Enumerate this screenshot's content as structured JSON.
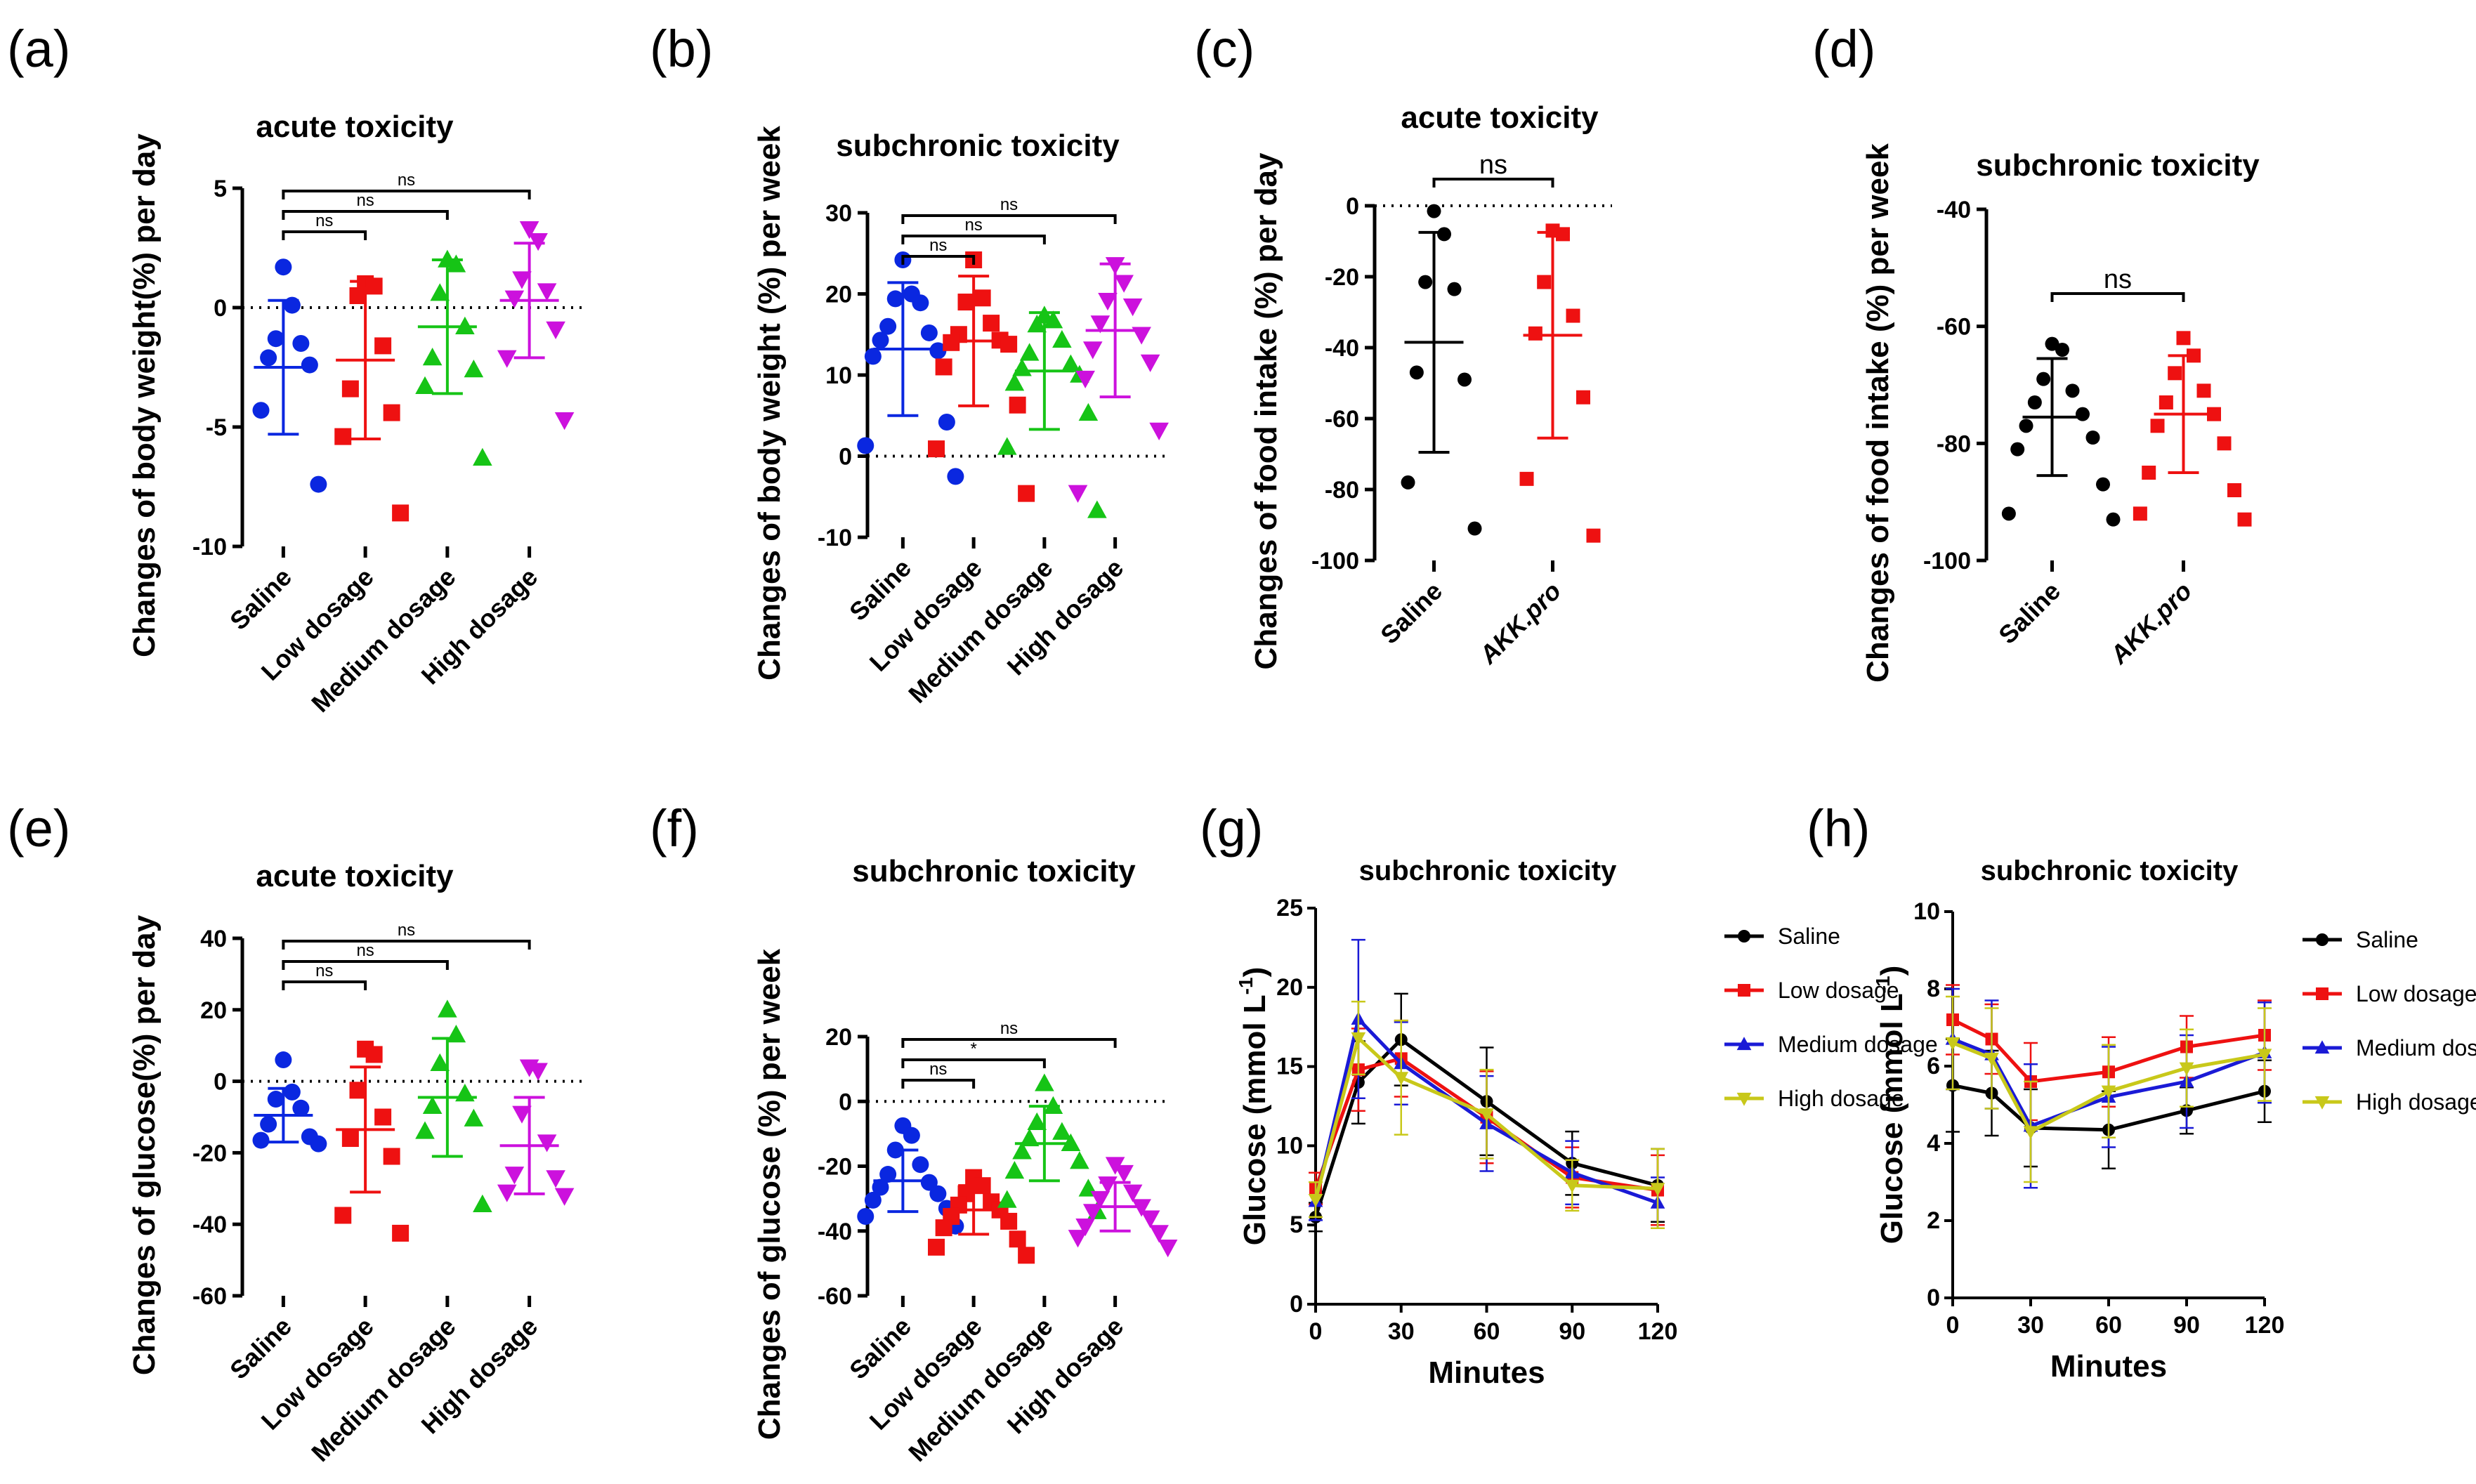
{
  "colors": {
    "saline": "#0a27e0",
    "low": "#ee1111",
    "medium": "#16c416",
    "high": "#cc11dd",
    "black": "#000000",
    "line_low": "#ee1111",
    "line_medium": "#1a1ad6",
    "line_high": "#c8c81a"
  },
  "chart_data": [
    {
      "id": "a",
      "panel_label": "(a)",
      "type": "scatter",
      "title": "acute toxicity",
      "ylabel": "Changes of body weight(%) per day",
      "ylim": [
        -10,
        5
      ],
      "yticks": [
        5,
        0,
        -5,
        -10
      ],
      "categories": [
        "Saline",
        "Low dosage",
        "Medium dosage",
        "High dosage"
      ],
      "series": [
        {
          "name": "Saline",
          "marker": "circle",
          "color_key": "saline",
          "mean": -2.5,
          "sd": 2.8,
          "values": [
            1.7,
            0.1,
            -1.3,
            -1.5,
            -2.1,
            -2.4,
            -4.3,
            -7.4
          ]
        },
        {
          "name": "Low dosage",
          "marker": "square",
          "color_key": "low",
          "mean": -2.2,
          "sd": 3.3,
          "values": [
            1.0,
            0.9,
            0.5,
            -1.6,
            -3.4,
            -4.4,
            -5.4,
            -8.6
          ]
        },
        {
          "name": "Medium dosage",
          "marker": "triangle-up",
          "color_key": "medium",
          "mean": -0.8,
          "sd": 2.8,
          "values": [
            2.0,
            1.8,
            0.6,
            -0.8,
            -2.1,
            -2.6,
            -3.3,
            -6.3
          ]
        },
        {
          "name": "High dosage",
          "marker": "triangle-down",
          "color_key": "high",
          "mean": 0.3,
          "sd": 2.4,
          "values": [
            3.3,
            2.8,
            1.2,
            0.7,
            0.4,
            -0.9,
            -2.1,
            -4.7
          ]
        }
      ],
      "significance": [
        {
          "from": 0,
          "to": 1,
          "label": "ns"
        },
        {
          "from": 0,
          "to": 2,
          "label": "ns"
        },
        {
          "from": 0,
          "to": 3,
          "label": "ns"
        }
      ]
    },
    {
      "id": "b",
      "panel_label": "(b)",
      "type": "scatter",
      "title": "subchronic toxicity",
      "ylabel": "Changes of body weight (%) per week",
      "ylim": [
        -10,
        30
      ],
      "yticks": [
        30,
        20,
        10,
        0,
        -10
      ],
      "categories": [
        "Saline",
        "Low dosage",
        "Medium dosage",
        "High dosage"
      ],
      "series": [
        {
          "name": "Saline",
          "marker": "circle",
          "color_key": "saline",
          "mean": 13.2,
          "sd": 8.2,
          "values": [
            24.2,
            20.0,
            19.4,
            18.9,
            16.0,
            15.2,
            14.3,
            13.0,
            12.3,
            4.2,
            1.3,
            -2.5
          ]
        },
        {
          "name": "Low dosage",
          "marker": "square",
          "color_key": "low",
          "mean": 14.2,
          "sd": 8.0,
          "values": [
            24.2,
            19.5,
            19.0,
            16.4,
            15.0,
            14.3,
            14.0,
            13.8,
            11.0,
            6.3,
            0.9,
            -4.6
          ]
        },
        {
          "name": "Medium dosage",
          "marker": "triangle-up",
          "color_key": "medium",
          "mean": 10.5,
          "sd": 7.2,
          "values": [
            17.3,
            16.7,
            16.2,
            14.3,
            12.7,
            11.3,
            10.8,
            10.0,
            9.0,
            5.3,
            1.1,
            -6.7
          ]
        },
        {
          "name": "High dosage",
          "marker": "triangle-down",
          "color_key": "high",
          "mean": 15.5,
          "sd": 8.2,
          "values": [
            23.6,
            21.4,
            19.2,
            18.5,
            16.4,
            15.0,
            13.2,
            11.6,
            9.6,
            3.2,
            -4.5
          ]
        }
      ],
      "significance": [
        {
          "from": 0,
          "to": 1,
          "label": "ns"
        },
        {
          "from": 0,
          "to": 2,
          "label": "ns"
        },
        {
          "from": 0,
          "to": 3,
          "label": "ns"
        }
      ]
    },
    {
      "id": "c",
      "panel_label": "(c)",
      "type": "scatter",
      "title": "acute toxicity",
      "ylabel": "Changes of food intake (%) per day",
      "ylim": [
        -100,
        0
      ],
      "yticks": [
        0,
        -20,
        -40,
        -60,
        -80,
        -100
      ],
      "categories": [
        "Saline",
        "AKK.pro"
      ],
      "series": [
        {
          "name": "Saline",
          "marker": "circle",
          "color_key": "black",
          "mean": -38.5,
          "sd": 31.0,
          "values": [
            -1.5,
            -8.0,
            -21.5,
            -23.5,
            -47.0,
            -49.0,
            -78.0,
            -91.0
          ]
        },
        {
          "name": "AKK.pro",
          "marker": "square",
          "color_key": "low",
          "mean": -36.5,
          "sd": 29.0,
          "values": [
            -7.0,
            -8.0,
            -21.5,
            -31.0,
            -36.0,
            -54.0,
            -77.0,
            -93.0
          ]
        }
      ],
      "significance": [
        {
          "from": 0,
          "to": 1,
          "label": "ns"
        }
      ]
    },
    {
      "id": "d",
      "panel_label": "(d)",
      "type": "scatter",
      "title": "subchronic toxicity",
      "ylabel": "Changes of food intake (%) per week",
      "ylim": [
        -100,
        -40
      ],
      "yticks": [
        -40,
        -60,
        -80,
        -100
      ],
      "categories": [
        "Saline",
        "AKK.pro"
      ],
      "series": [
        {
          "name": "Saline",
          "marker": "circle",
          "color_key": "black",
          "mean": -75.5,
          "sd": 10.0,
          "values": [
            -63.0,
            -64.0,
            -69.0,
            -71.0,
            -73.0,
            -75.0,
            -77.0,
            -79.0,
            -81.0,
            -87.0,
            -92.0,
            -93.0
          ]
        },
        {
          "name": "AKK.pro",
          "marker": "square",
          "color_key": "low",
          "mean": -75.0,
          "sd": 10.0,
          "values": [
            -62.0,
            -65.0,
            -68.0,
            -71.0,
            -73.0,
            -75.0,
            -77.0,
            -80.0,
            -85.0,
            -88.0,
            -92.0,
            -93.0
          ]
        }
      ],
      "significance": [
        {
          "from": 0,
          "to": 1,
          "label": "ns"
        }
      ]
    },
    {
      "id": "e",
      "panel_label": "(e)",
      "type": "scatter",
      "title": "acute toxicity",
      "ylabel": "Changes of glucose(%) per day",
      "ylim": [
        -60,
        40
      ],
      "yticks": [
        40,
        20,
        0,
        -20,
        -40,
        -60
      ],
      "categories": [
        "Saline",
        "Low dosage",
        "Medium dosage",
        "High dosage"
      ],
      "series": [
        {
          "name": "Saline",
          "marker": "circle",
          "color_key": "saline",
          "mean": -9.5,
          "sd": 7.5,
          "values": [
            6.0,
            -3.0,
            -5.0,
            -7.5,
            -12.0,
            -15.5,
            -16.5,
            -17.5
          ]
        },
        {
          "name": "Low dosage",
          "marker": "square",
          "color_key": "low",
          "mean": -13.5,
          "sd": 17.5,
          "values": [
            9.0,
            7.5,
            -2.5,
            -10.0,
            -16.0,
            -21.0,
            -37.5,
            -42.5
          ]
        },
        {
          "name": "Medium dosage",
          "marker": "triangle-up",
          "color_key": "medium",
          "mean": -4.5,
          "sd": 16.5,
          "values": [
            20.0,
            13.0,
            5.0,
            -3.5,
            -7.0,
            -10.5,
            -14.0,
            -34.5
          ]
        },
        {
          "name": "High dosage",
          "marker": "triangle-down",
          "color_key": "high",
          "mean": -18.0,
          "sd": 13.5,
          "values": [
            4.0,
            3.0,
            -9.0,
            -17.0,
            -26.0,
            -27.0,
            -31.0,
            -32.0
          ]
        }
      ],
      "significance": [
        {
          "from": 0,
          "to": 1,
          "label": "ns"
        },
        {
          "from": 0,
          "to": 2,
          "label": "ns"
        },
        {
          "from": 0,
          "to": 3,
          "label": "ns"
        }
      ]
    },
    {
      "id": "f",
      "panel_label": "(f)",
      "type": "scatter",
      "title": "subchronic toxicity",
      "ylabel": "Changes of glucose (%) per week",
      "ylim": [
        -60,
        20
      ],
      "yticks": [
        20,
        0,
        -20,
        -40,
        -60
      ],
      "categories": [
        "Saline",
        "Low dosage",
        "Medium dosage",
        "High dosage"
      ],
      "series": [
        {
          "name": "Saline",
          "marker": "circle",
          "color_key": "saline",
          "mean": -24.5,
          "sd": 9.5,
          "values": [
            -7.5,
            -10.5,
            -15.0,
            -19.5,
            -22.5,
            -25.0,
            -26.5,
            -28.5,
            -30.5,
            -33.0,
            -35.5,
            -38.5
          ]
        },
        {
          "name": "Low dosage",
          "marker": "square",
          "color_key": "low",
          "mean": -33.5,
          "sd": 7.5,
          "values": [
            -23.5,
            -26.0,
            -28.5,
            -31.0,
            -32.0,
            -33.5,
            -35.5,
            -37.0,
            -39.0,
            -42.5,
            -45.0,
            -47.5
          ]
        },
        {
          "name": "Medium dosage",
          "marker": "triangle-up",
          "color_key": "medium",
          "mean": -13.0,
          "sd": 11.5,
          "values": [
            5.5,
            -1.5,
            -6.5,
            -9.5,
            -11.5,
            -13.0,
            -15.5,
            -18.5,
            -21.5,
            -27.0,
            -30.5,
            -34.0
          ]
        },
        {
          "name": "High dosage",
          "marker": "triangle-down",
          "color_key": "high",
          "mean": -32.5,
          "sd": 7.5,
          "values": [
            -19.5,
            -22.0,
            -25.5,
            -28.0,
            -30.0,
            -32.5,
            -34.0,
            -36.0,
            -38.5,
            -40.5,
            -42.0,
            -45.0
          ]
        }
      ],
      "significance": [
        {
          "from": 0,
          "to": 1,
          "label": "ns"
        },
        {
          "from": 0,
          "to": 2,
          "label": "*"
        },
        {
          "from": 0,
          "to": 3,
          "label": "ns"
        }
      ]
    },
    {
      "id": "g",
      "panel_label": "(g)",
      "type": "line",
      "title": "subchronic toxicity",
      "xlabel": "Minutes",
      "ylabel_main": "Glucose (mmol L",
      "ylabel_sup": "-1",
      "ylabel_close": ")",
      "xlim": [
        0,
        120
      ],
      "xticks": [
        0,
        30,
        60,
        90,
        120
      ],
      "ylim": [
        0,
        25
      ],
      "yticks": [
        0,
        5,
        10,
        15,
        20,
        25
      ],
      "x": [
        0,
        15,
        30,
        60,
        90,
        120
      ],
      "series": [
        {
          "name": "Saline",
          "marker": "circle",
          "color_key": "black",
          "values": [
            5.5,
            14.0,
            16.7,
            12.8,
            8.9,
            7.5
          ],
          "err": [
            0.9,
            2.6,
            2.9,
            3.4,
            2.0,
            2.3
          ]
        },
        {
          "name": "Low dosage",
          "marker": "square",
          "color_key": "line_low",
          "values": [
            7.3,
            14.8,
            15.5,
            11.8,
            8.0,
            7.2
          ],
          "err": [
            1.0,
            2.6,
            2.4,
            2.9,
            1.9,
            2.2
          ]
        },
        {
          "name": "Medium dosage",
          "marker": "triangle-up",
          "color_key": "line_medium",
          "values": [
            6.5,
            18.0,
            15.2,
            11.4,
            8.3,
            6.4
          ],
          "err": [
            1.2,
            5.0,
            2.6,
            3.0,
            2.0,
            1.6
          ]
        },
        {
          "name": "High dosage",
          "marker": "triangle-down",
          "color_key": "line_high",
          "values": [
            6.6,
            16.8,
            14.3,
            12.0,
            7.5,
            7.3
          ],
          "err": [
            1.1,
            2.3,
            3.6,
            2.8,
            1.6,
            2.5
          ]
        }
      ]
    },
    {
      "id": "h",
      "panel_label": "(h)",
      "type": "line",
      "title": "subchronic toxicity",
      "xlabel": "Minutes",
      "ylabel_main": "Glucose (mmol L",
      "ylabel_sup": "-1",
      "ylabel_close": ")",
      "xlim": [
        0,
        120
      ],
      "xticks": [
        0,
        30,
        60,
        90,
        120
      ],
      "ylim": [
        0,
        10
      ],
      "yticks": [
        0,
        2,
        4,
        6,
        8,
        10
      ],
      "x": [
        0,
        15,
        30,
        60,
        90,
        120
      ],
      "series": [
        {
          "name": "Saline",
          "marker": "circle",
          "color_key": "black",
          "values": [
            5.5,
            5.3,
            4.4,
            4.35,
            4.85,
            5.35
          ],
          "err": [
            1.2,
            1.1,
            1.0,
            1.0,
            0.6,
            0.8
          ]
        },
        {
          "name": "Low dosage",
          "marker": "square",
          "color_key": "line_low",
          "values": [
            7.2,
            6.7,
            5.6,
            5.85,
            6.5,
            6.8
          ],
          "err": [
            0.9,
            0.9,
            1.0,
            0.9,
            0.8,
            0.9
          ]
        },
        {
          "name": "Medium dosage",
          "marker": "triangle-up",
          "color_key": "line_medium",
          "values": [
            6.7,
            6.3,
            4.45,
            5.2,
            5.6,
            6.35
          ],
          "err": [
            1.3,
            1.4,
            1.6,
            1.3,
            1.2,
            1.3
          ]
        },
        {
          "name": "High dosage",
          "marker": "triangle-down",
          "color_key": "line_high",
          "values": [
            6.6,
            6.2,
            4.3,
            5.35,
            5.95,
            6.3
          ],
          "err": [
            1.2,
            1.3,
            1.3,
            1.2,
            1.0,
            1.2
          ]
        }
      ]
    }
  ]
}
